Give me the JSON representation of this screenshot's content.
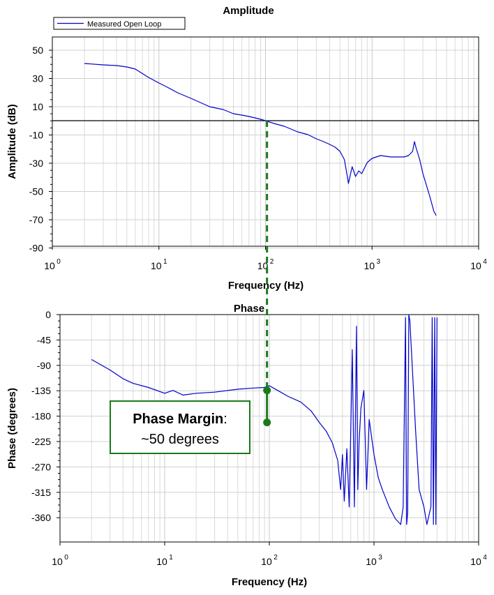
{
  "chart_data": [
    {
      "type": "line",
      "title": "Amplitude",
      "xlabel": "Frequency (Hz)",
      "ylabel": "Amplitude (dB)",
      "xscale": "log",
      "xlim": [
        1,
        10000
      ],
      "ylim": [
        -90,
        60
      ],
      "x_ticks": [
        "10",
        "10",
        "10",
        "10",
        "10"
      ],
      "x_tick_exponents": [
        "0",
        "1",
        "2",
        "3",
        "4"
      ],
      "y_ticks": [
        "50",
        "30",
        "10",
        "-10",
        "-30",
        "-50",
        "-70",
        "-90"
      ],
      "grid": true,
      "legend": {
        "placement": "top-left",
        "entries": [
          "Measured Open Loop"
        ]
      },
      "reference_line_y": 0,
      "series": [
        {
          "name": "Measured Open Loop",
          "color": "#0000cc",
          "x": [
            2,
            3,
            4,
            5,
            6,
            8,
            10,
            12,
            15,
            20,
            30,
            40,
            50,
            60,
            70,
            80,
            90,
            100,
            120,
            150,
            200,
            250,
            300,
            350,
            400,
            450,
            500,
            550,
            580,
            600,
            650,
            700,
            750,
            800,
            900,
            1000,
            1200,
            1500,
            1800,
            2000,
            2200,
            2400,
            2500,
            2600,
            2800,
            3000,
            3200,
            3500,
            3800,
            4000
          ],
          "y": [
            41,
            40,
            39.5,
            38.5,
            37,
            31,
            27,
            24,
            20,
            16,
            10,
            8,
            5,
            4,
            3,
            2,
            1,
            0,
            -2,
            -4,
            -8,
            -10,
            -13,
            -15,
            -17,
            -19,
            -22,
            -28,
            -38,
            -45,
            -33,
            -40,
            -36,
            -38,
            -30,
            -27,
            -25,
            -26,
            -26,
            -26,
            -25,
            -22,
            -15,
            -20,
            -28,
            -38,
            -45,
            -55,
            -65,
            -68
          ]
        }
      ]
    },
    {
      "type": "line",
      "title": "Phase",
      "xlabel": "Frequency (Hz)",
      "ylabel": "Phase (degrees)",
      "xscale": "log",
      "xlim": [
        1,
        10000
      ],
      "ylim": [
        -390,
        0
      ],
      "x_ticks": [
        "10",
        "10",
        "10",
        "10",
        "10"
      ],
      "x_tick_exponents": [
        "0",
        "1",
        "2",
        "3",
        "4"
      ],
      "y_ticks": [
        "0",
        "-45",
        "-90",
        "-135",
        "-180",
        "-225",
        "-270",
        "-315",
        "-360"
      ],
      "grid": true,
      "series": [
        {
          "name": "Measured Open Loop",
          "color": "#0000cc",
          "x": [
            2,
            3,
            4,
            5,
            7,
            10,
            12,
            15,
            20,
            30,
            50,
            70,
            90,
            100,
            120,
            150,
            200,
            250,
            300,
            350,
            400,
            450,
            480,
            500,
            520,
            550,
            580,
            600,
            620,
            650,
            680,
            700,
            720,
            750,
            800,
            850,
            900,
            1000,
            1100,
            1200,
            1400,
            1600,
            1800,
            1900,
            2000,
            2050,
            2100,
            2150,
            2200,
            2500,
            2700,
            3000,
            3200,
            3500,
            3600,
            3700,
            3800,
            3900,
            4000
          ],
          "y": [
            -77,
            -95,
            -110,
            -118,
            -125,
            -135,
            -130,
            -138,
            -135,
            -133,
            -128,
            -126,
            -125,
            -122,
            -130,
            -140,
            -150,
            -165,
            -185,
            -200,
            -220,
            -250,
            -300,
            -240,
            -320,
            -230,
            -330,
            -200,
            -60,
            -330,
            -20,
            -300,
            -220,
            -160,
            -130,
            -300,
            -180,
            -240,
            -280,
            -300,
            -330,
            -350,
            -360,
            -330,
            -5,
            -360,
            -340,
            0,
            -10,
            -200,
            -300,
            -330,
            -360,
            -330,
            -5,
            -360,
            -5,
            -360,
            -5
          ]
        }
      ],
      "annotations": [
        {
          "label_bold": "Phase Margin",
          "label_suffix": ":",
          "label_detail": "~50 degrees"
        }
      ],
      "markers": [
        {
          "x": 95,
          "y": -130
        },
        {
          "x": 95,
          "y": -185
        }
      ],
      "crossover_x": 95
    }
  ],
  "colors": {
    "series": "#0000cc",
    "annotation": "#1a7a1a",
    "grid": "#d0d0d0",
    "axis": "#000000"
  }
}
